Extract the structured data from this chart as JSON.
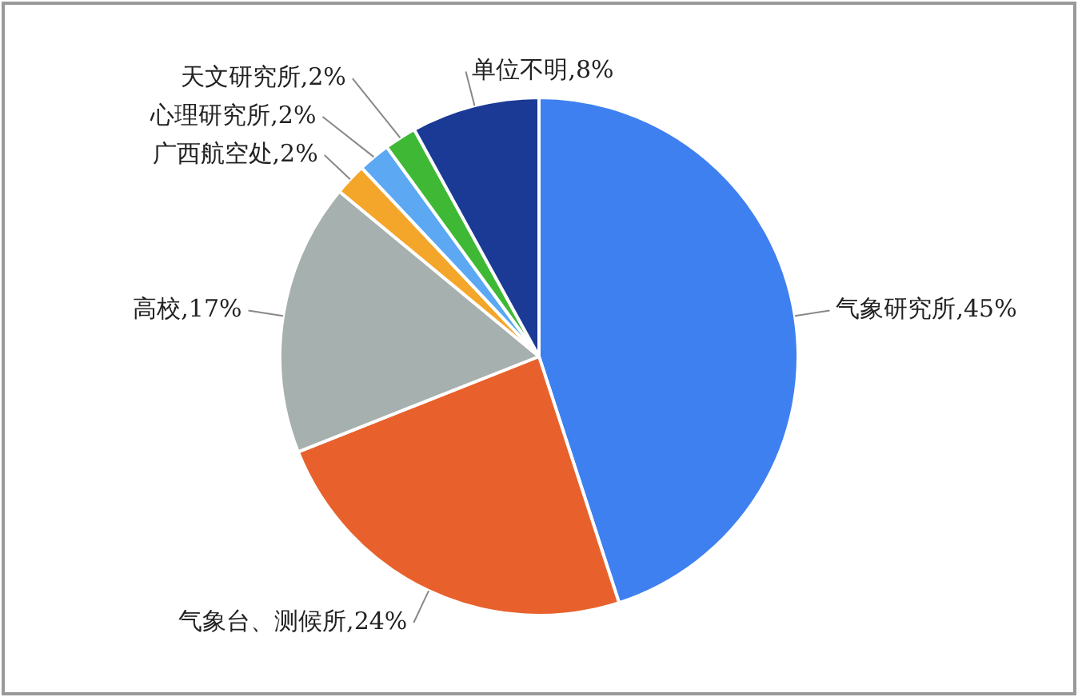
{
  "chart_data": {
    "type": "pie",
    "categories": [
      "气象研究所",
      "气象台、测候所",
      "高校",
      "广西航空处",
      "心理研究所",
      "天文研究所",
      "单位不明"
    ],
    "values": [
      45,
      24,
      17,
      2,
      2,
      2,
      8
    ],
    "colors": [
      "#3f80f0",
      "#e8612d",
      "#a6b0ae",
      "#f4a62a",
      "#5ca8f2",
      "#3fb935",
      "#1b3a96"
    ],
    "value_labels": [
      "45%",
      "24%",
      "17%",
      "2%",
      "2%",
      "2%",
      "8%"
    ],
    "legend": false
  }
}
